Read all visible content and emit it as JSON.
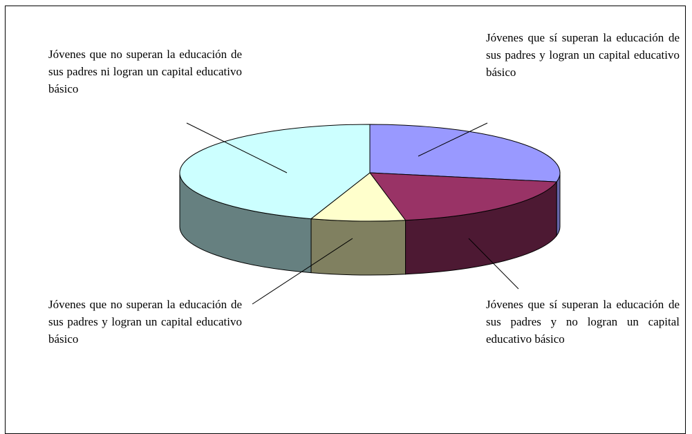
{
  "chart_data": {
    "type": "pie",
    "categories": [
      "Jóvenes que sí superan la educación de sus padres y logran un capital educativo básico",
      "Jóvenes que sí superan la educación de sus padres y no logran un capital educativo básico",
      "Jóvenes que no superan la educación de sus padres y logran un capital educativo básico",
      "Jóvenes que no superan la educación de sus padres ni logran un capital educativo básico"
    ],
    "values": [
      28,
      19,
      8,
      45
    ],
    "colors": [
      "#9999ff",
      "#993366",
      "#ffffcc",
      "#ccffff"
    ],
    "side_colors": [
      "#6666aa",
      "#4d1933",
      "#808060",
      "#668080"
    ]
  }
}
